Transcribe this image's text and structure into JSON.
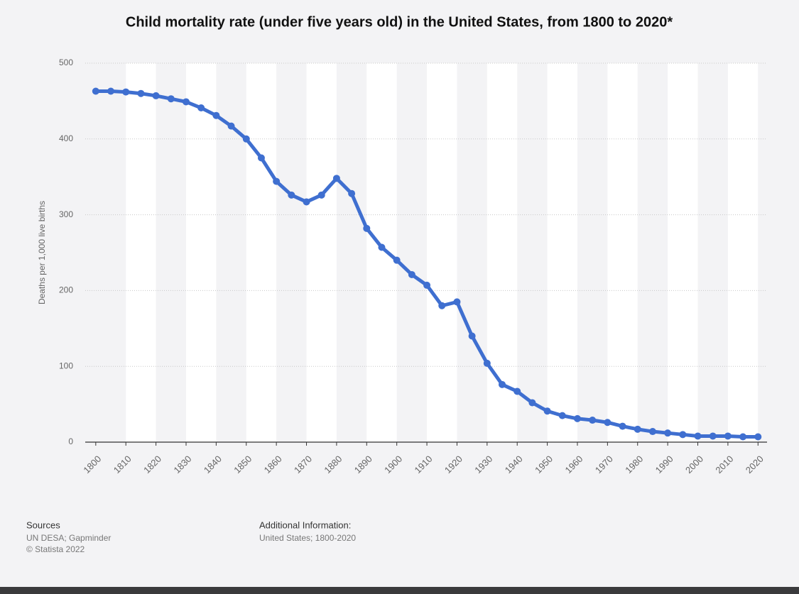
{
  "chart_data": {
    "type": "line",
    "title": "Child mortality rate (under five years old) in the United States, from 1800 to 2020*",
    "y_label": "Deaths per 1,000 live births",
    "x": [
      1800,
      1805,
      1810,
      1815,
      1820,
      1825,
      1830,
      1835,
      1840,
      1845,
      1850,
      1855,
      1860,
      1865,
      1870,
      1875,
      1880,
      1885,
      1890,
      1895,
      1900,
      1905,
      1910,
      1915,
      1920,
      1925,
      1930,
      1935,
      1940,
      1945,
      1950,
      1955,
      1960,
      1965,
      1970,
      1975,
      1980,
      1985,
      1990,
      1995,
      2000,
      2005,
      2010,
      2015,
      2020
    ],
    "series": [
      {
        "name": "Child mortality rate",
        "color": "#3f6fd0",
        "values": [
          463,
          463,
          462,
          460,
          457,
          453,
          449,
          441,
          431,
          417,
          400,
          375,
          344,
          326,
          317,
          326,
          348,
          328,
          282,
          257,
          240,
          221,
          207,
          180,
          185,
          140,
          104,
          76,
          67,
          52,
          41,
          35,
          31,
          29,
          26,
          21,
          17,
          14,
          12,
          10,
          8,
          8,
          8,
          7,
          7
        ]
      }
    ],
    "xlim": [
      1796.5,
      2023
    ],
    "xticks": [
      1800,
      1810,
      1820,
      1830,
      1840,
      1850,
      1860,
      1870,
      1880,
      1890,
      1900,
      1910,
      1920,
      1930,
      1940,
      1950,
      1960,
      1970,
      1980,
      1990,
      2000,
      2010,
      2020
    ],
    "ylim": [
      0,
      500
    ],
    "yticks": [
      0,
      100,
      200,
      300,
      400,
      500
    ],
    "grid": true
  },
  "footer": {
    "sources_heading": "Sources",
    "sources": [
      "UN DESA; Gapminder",
      "© Statista 2022"
    ],
    "info_heading": "Additional Information:",
    "info": "United States; 1800-2020"
  }
}
